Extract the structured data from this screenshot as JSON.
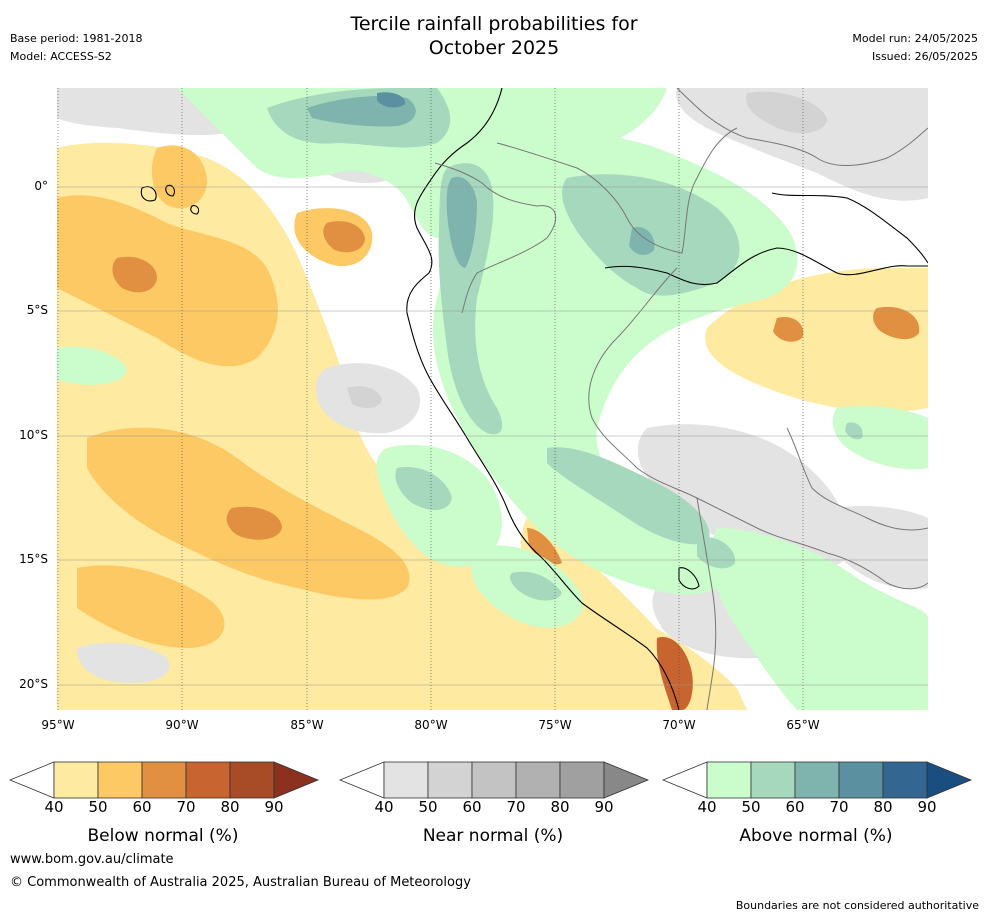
{
  "header": {
    "title_line1": "Tercile rainfall probabilities for",
    "title_line2": "October 2025",
    "base_period": "Base period: 1981-2018",
    "model": "Model: ACCESS-S2",
    "model_run": "Model run: 24/05/2025",
    "issued": "Issued: 26/05/2025"
  },
  "map": {
    "lat_labels": [
      "0°",
      "5°S",
      "10°S",
      "15°S",
      "20°S"
    ],
    "lon_labels": [
      "95°W",
      "90°W",
      "85°W",
      "80°W",
      "75°W",
      "70°W",
      "65°W"
    ]
  },
  "legends": [
    {
      "caption": "Below normal (%)",
      "ticks": [
        "40",
        "50",
        "60",
        "70",
        "80",
        "90"
      ],
      "colors": [
        "#ffffff",
        "#feeaa0",
        "#fdc965",
        "#e09040",
        "#c86430",
        "#a84c28",
        "#8c3020"
      ]
    },
    {
      "caption": "Near normal (%)",
      "ticks": [
        "40",
        "50",
        "60",
        "70",
        "80",
        "90"
      ],
      "colors": [
        "#ffffff",
        "#e3e3e3",
        "#d3d3d3",
        "#c3c3c3",
        "#b1b1b1",
        "#a0a0a0",
        "#888888"
      ]
    },
    {
      "caption": "Above normal (%)",
      "ticks": [
        "40",
        "50",
        "60",
        "70",
        "80",
        "90"
      ],
      "colors": [
        "#ffffff",
        "#cbfccb",
        "#a5d8bc",
        "#7fb3ad",
        "#5b90a0",
        "#336690",
        "#1a4d80"
      ]
    }
  ],
  "footer": {
    "url": "www.bom.gov.au/climate",
    "copyright": "© Commonwealth of Australia 2025, Australian Bureau of Meteorology",
    "note": "Boundaries are not considered authoritative"
  }
}
